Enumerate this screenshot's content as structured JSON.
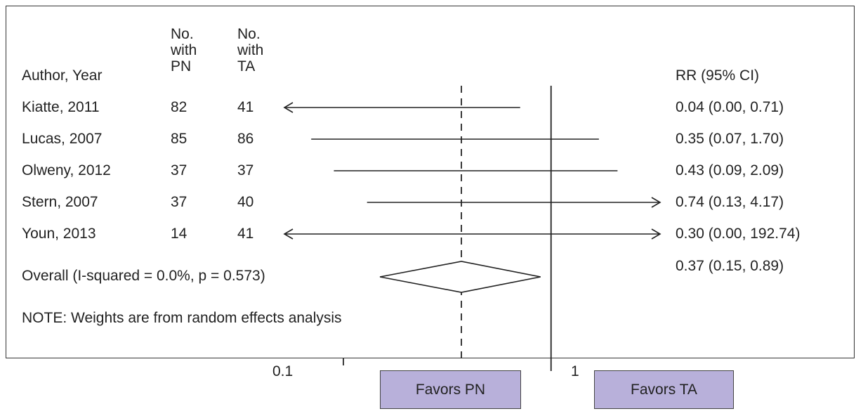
{
  "headers": {
    "author": "Author, Year",
    "pn": [
      "No.",
      "with",
      "PN"
    ],
    "ta": [
      "No.",
      "with",
      "TA"
    ],
    "rr": "RR (95% CI)"
  },
  "overall_label": "Overall  (I-squared = 0.0%, p = 0.573)",
  "note": "NOTE: Weights are from random effects analysis",
  "axis": {
    "tick_labels": [
      "0.1",
      "1"
    ]
  },
  "favors": {
    "left": "Favors PN",
    "right": "Favors TA"
  },
  "colors": {
    "favors_box": "#b8b0da",
    "lines": "#222222"
  },
  "chart_data": {
    "type": "forest",
    "x_scale": "log",
    "xlim": [
      0.052,
      3.35
    ],
    "reference_line": 1,
    "overall_line": 0.37,
    "studies": [
      {
        "label": "Kiatte, 2011",
        "n_pn": "82",
        "n_ta": "41",
        "rr": 0.04,
        "ci": [
          0.0,
          0.71
        ],
        "rr_text": "0.04 (0.00, 0.71)"
      },
      {
        "label": "Lucas, 2007",
        "n_pn": "85",
        "n_ta": "86",
        "rr": 0.35,
        "ci": [
          0.07,
          1.7
        ],
        "rr_text": "0.35 (0.07, 1.70)"
      },
      {
        "label": "Olweny, 2012",
        "n_pn": "37",
        "n_ta": "37",
        "rr": 0.43,
        "ci": [
          0.09,
          2.09
        ],
        "rr_text": "0.43 (0.09, 2.09)"
      },
      {
        "label": "Stern, 2007",
        "n_pn": "37",
        "n_ta": "40",
        "rr": 0.74,
        "ci": [
          0.13,
          4.17
        ],
        "rr_text": "0.74 (0.13, 4.17)"
      },
      {
        "label": "Youn, 2013",
        "n_pn": "14",
        "n_ta": "41",
        "rr": 0.3,
        "ci": [
          0.0,
          192.74
        ],
        "rr_text": "0.30 (0.00, 192.74)"
      }
    ],
    "overall": {
      "rr": 0.37,
      "ci": [
        0.15,
        0.89
      ],
      "rr_text": "0.37 (0.15, 0.89)"
    }
  }
}
